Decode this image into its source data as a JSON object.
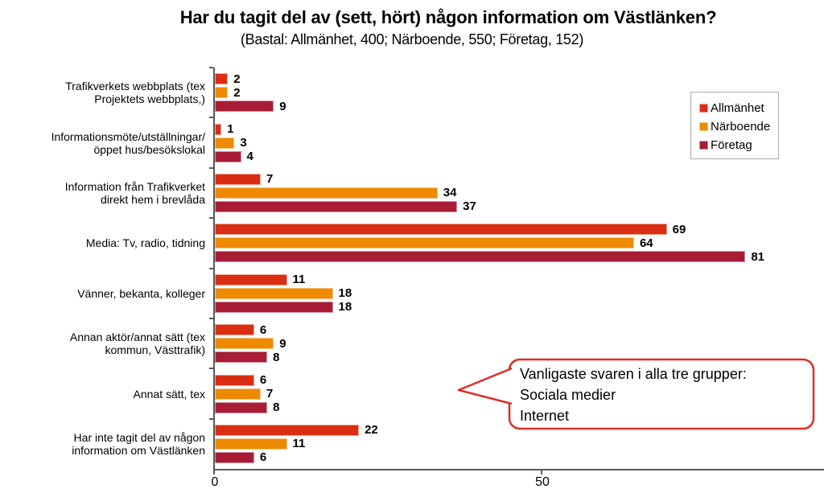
{
  "chart_data": {
    "type": "bar",
    "orientation": "horizontal",
    "title": "Har du tagit del av (sett, hört) någon information om Västlänken?",
    "subtitle": "(Bastal: Allmänhet, 400; Närboende, 550; Företag, 152)",
    "categories": [
      "Trafikverkets webbplats (tex\nProjektets webbplats,)",
      "Informationsmöte/utställningar/\nöppet hus/besökslokal",
      "Information från Trafikverket\ndirekt hem i brevlåda",
      "Media: Tv, radio, tidning",
      "Vänner, bekanta, kolleger",
      "Annan aktör/annat sätt (tex\nkommun, Västtrafik)",
      "Annat sätt, tex",
      "Har inte tagit del av någon\ninformation om Västlänken"
    ],
    "series": [
      {
        "name": "Allmänhet",
        "color": "#d92d14",
        "border": "#f2a38d",
        "values": [
          2,
          1,
          7,
          69,
          11,
          6,
          6,
          22
        ]
      },
      {
        "name": "Närboende",
        "color": "#ee8a00",
        "border": "#f6c487",
        "values": [
          2,
          3,
          34,
          64,
          18,
          9,
          7,
          11
        ]
      },
      {
        "name": "Företag",
        "color": "#a81d35",
        "border": "#d490a0",
        "values": [
          9,
          4,
          37,
          81,
          18,
          8,
          8,
          6
        ]
      }
    ],
    "xlim": [
      0,
      93
    ],
    "x_ticks": [
      0,
      50
    ],
    "x_tick_labels": [
      "0",
      "50"
    ],
    "grid": false,
    "legend_position": "upper-right",
    "value_labels": true,
    "axis_color": "#595959"
  },
  "callout": {
    "lines": [
      "Vanligaste svaren i alla tre grupper:",
      "Sociala medier",
      "Internet"
    ],
    "border_color": "#dd2f26"
  }
}
